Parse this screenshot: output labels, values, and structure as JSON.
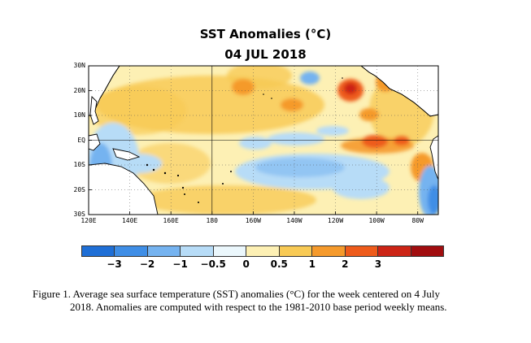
{
  "title": "SST Anomalies (°C)",
  "subtitle": "04 JUL 2018",
  "map": {
    "lat_labels": [
      "30N",
      "20N",
      "10N",
      "EQ",
      "10S",
      "20S",
      "30S"
    ],
    "lat_values": [
      30,
      20,
      10,
      0,
      -10,
      -20,
      -30
    ],
    "lon_labels": [
      "120E",
      "140E",
      "160E",
      "180",
      "160W",
      "140W",
      "120W",
      "100W",
      "80W"
    ],
    "lon_values": [
      120,
      140,
      160,
      180,
      200,
      220,
      240,
      260,
      280
    ],
    "lon_range": [
      120,
      290
    ],
    "lat_range": [
      -30,
      30
    ]
  },
  "colorbar": {
    "colors": [
      "#1f6fd6",
      "#3f8ee6",
      "#75b3f0",
      "#b7dcf7",
      "#ebf7fc",
      "#fdf0b4",
      "#f8ca55",
      "#f59a2c",
      "#ee5b1b",
      "#cc2416",
      "#a10d0f"
    ],
    "labels": [
      "−3",
      "−2",
      "−1",
      "−0.5",
      "0",
      "0.5",
      "1",
      "2",
      "3"
    ]
  },
  "caption": {
    "line1": "Figure 1. Average sea surface temperature (SST) anomalies (°C) for the week centered on 4 July",
    "line2": "2018.  Anomalies are computed with respect to the 1981-2010 base period weekly means."
  }
}
